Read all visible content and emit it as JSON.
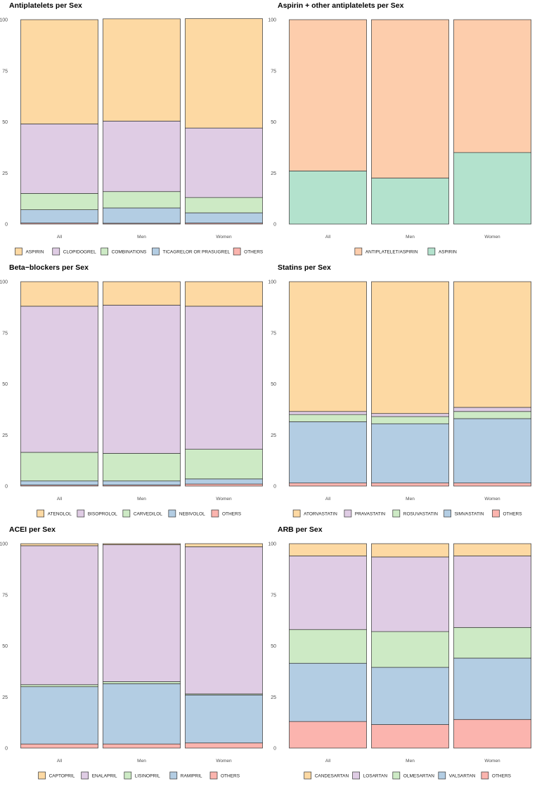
{
  "chart_data": [
    {
      "type": "bar",
      "stacked": true,
      "title": "Antiplatelets per Sex",
      "categories": [
        "All",
        "Men",
        "Women"
      ],
      "ylim": [
        0,
        100
      ],
      "yticks": [
        "0",
        "25",
        "50",
        "75",
        "100"
      ],
      "legend_position": "bottom",
      "series": [
        {
          "name": "ASPIRIN",
          "color": "#fdd9a3",
          "values": [
            51,
            50,
            53.5
          ]
        },
        {
          "name": "CLOPIDOGREL",
          "color": "#dfcce4",
          "values": [
            34,
            34.5,
            34
          ]
        },
        {
          "name": "COMBINATIONS",
          "color": "#cdeac5",
          "values": [
            8,
            8,
            7.5
          ]
        },
        {
          "name": "TICAGRELOR OR PRASUGREL",
          "color": "#b3cde3",
          "values": [
            6.5,
            7.5,
            5
          ]
        },
        {
          "name": "OTHERS",
          "color": "#fbb4ae",
          "values": [
            0.5,
            0.4,
            0.5
          ]
        }
      ]
    },
    {
      "type": "bar",
      "stacked": true,
      "title": "Aspirin + other antiplatelets per Sex",
      "categories": [
        "All",
        "Men",
        "Women"
      ],
      "ylim": [
        0,
        100
      ],
      "yticks": [
        "0",
        "25",
        "50",
        "75",
        "100"
      ],
      "legend_position": "bottom",
      "series": [
        {
          "name": "ANTIPLATELET/ASPIRIN",
          "color": "#fdcdac",
          "values": [
            74,
            77.5,
            65
          ]
        },
        {
          "name": "ASPIRIN",
          "color": "#b3e2cd",
          "values": [
            26,
            22.5,
            35
          ]
        }
      ]
    },
    {
      "type": "bar",
      "stacked": true,
      "title": "Beta−blockers per Sex",
      "categories": [
        "All",
        "Men",
        "Women"
      ],
      "ylim": [
        0,
        100
      ],
      "yticks": [
        "0",
        "25",
        "50",
        "75",
        "100"
      ],
      "legend_position": "bottom",
      "series": [
        {
          "name": "ATENOLOL",
          "color": "#fdd9a3",
          "values": [
            12,
            11.5,
            12
          ]
        },
        {
          "name": "BISOPROLOL",
          "color": "#dfcce4",
          "values": [
            71.5,
            72.5,
            70
          ]
        },
        {
          "name": "CARVEDILOL",
          "color": "#cdeac5",
          "values": [
            14,
            13.5,
            14.5
          ]
        },
        {
          "name": "NEBIVOLOL",
          "color": "#b3cde3",
          "values": [
            2,
            2,
            2.5
          ]
        },
        {
          "name": "OTHERS",
          "color": "#fbb4ae",
          "values": [
            0.5,
            0.5,
            1
          ]
        }
      ]
    },
    {
      "type": "bar",
      "stacked": true,
      "title": "Statins per Sex",
      "categories": [
        "All",
        "Men",
        "Women"
      ],
      "ylim": [
        0,
        100
      ],
      "yticks": [
        "0",
        "25",
        "50",
        "75",
        "100"
      ],
      "legend_position": "bottom",
      "series": [
        {
          "name": "ATORVASTATIN",
          "color": "#fdd9a3",
          "values": [
            63.5,
            64.5,
            61.5
          ]
        },
        {
          "name": "PRAVASTATIN",
          "color": "#dfcce4",
          "values": [
            1.5,
            1.5,
            2
          ]
        },
        {
          "name": "ROSUVASTATIN",
          "color": "#cdeac5",
          "values": [
            3.5,
            3.5,
            3.5
          ]
        },
        {
          "name": "SIMVASTATIN",
          "color": "#b3cde3",
          "values": [
            30,
            29,
            31.5
          ]
        },
        {
          "name": "OTHERS",
          "color": "#fbb4ae",
          "values": [
            1.5,
            1.5,
            1.5
          ]
        }
      ]
    },
    {
      "type": "bar",
      "stacked": true,
      "title": "ACEI per Sex",
      "categories": [
        "All",
        "Men",
        "Women"
      ],
      "ylim": [
        0,
        100
      ],
      "yticks": [
        "0",
        "25",
        "50",
        "75",
        "100"
      ],
      "legend_position": "bottom",
      "series": [
        {
          "name": "CAPTOPRIL",
          "color": "#fdd9a3",
          "values": [
            1,
            0.5,
            1.5
          ]
        },
        {
          "name": "ENALAPRIL",
          "color": "#dfcce4",
          "values": [
            68,
            67,
            72
          ]
        },
        {
          "name": "LISINOPRIL",
          "color": "#cdeac5",
          "values": [
            1,
            1,
            0.5
          ]
        },
        {
          "name": "RAMIPRIL",
          "color": "#b3cde3",
          "values": [
            28,
            29.5,
            23.5
          ]
        },
        {
          "name": "OTHERS",
          "color": "#fbb4ae",
          "values": [
            2,
            2,
            2.5
          ]
        }
      ]
    },
    {
      "type": "bar",
      "stacked": true,
      "title": "ARB per Sex",
      "categories": [
        "All",
        "Men",
        "Women"
      ],
      "ylim": [
        0,
        100
      ],
      "yticks": [
        "0",
        "25",
        "50",
        "75",
        "100"
      ],
      "legend_position": "bottom",
      "series": [
        {
          "name": "CANDESARTAN",
          "color": "#fdd9a3",
          "values": [
            6,
            6.5,
            6
          ]
        },
        {
          "name": "LOSARTAN",
          "color": "#dfcce4",
          "values": [
            36,
            36.5,
            35
          ]
        },
        {
          "name": "OLMESARTAN",
          "color": "#cdeac5",
          "values": [
            16.5,
            17.5,
            15
          ]
        },
        {
          "name": "VALSARTAN",
          "color": "#b3cde3",
          "values": [
            28.5,
            28,
            30
          ]
        },
        {
          "name": "OTHERS",
          "color": "#fbb4ae",
          "values": [
            13,
            11.5,
            14
          ]
        }
      ]
    }
  ]
}
